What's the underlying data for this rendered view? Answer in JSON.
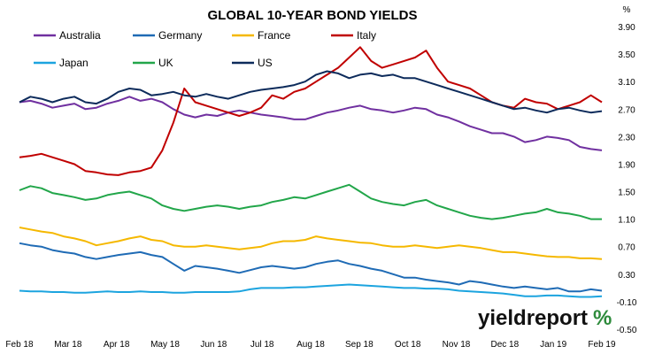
{
  "chart_data": {
    "type": "line",
    "title": "GLOBAL 10-YEAR BOND YIELDS",
    "y_unit_label": "%",
    "ylim": [
      -0.5,
      3.9
    ],
    "y_ticks": [
      "3.90",
      "3.50",
      "3.10",
      "2.70",
      "2.30",
      "1.90",
      "1.50",
      "1.10",
      "0.70",
      "0.30",
      "-0.10",
      "-0.50"
    ],
    "x_ticks": [
      "Feb 18",
      "Mar 18",
      "Apr 18",
      "May 18",
      "Jun 18",
      "Jul 18",
      "Aug 18",
      "Sep 18",
      "Oct 18",
      "Nov 18",
      "Dec 18",
      "Jan 19",
      "Feb 19"
    ],
    "grid": false,
    "legend_position": "top",
    "series": [
      {
        "name": "Australia",
        "color": "#7030A0",
        "values": [
          2.8,
          2.82,
          2.78,
          2.72,
          2.75,
          2.78,
          2.7,
          2.72,
          2.78,
          2.82,
          2.88,
          2.82,
          2.85,
          2.8,
          2.7,
          2.62,
          2.58,
          2.62,
          2.6,
          2.65,
          2.68,
          2.65,
          2.62,
          2.6,
          2.58,
          2.55,
          2.55,
          2.6,
          2.65,
          2.68,
          2.72,
          2.75,
          2.7,
          2.68,
          2.65,
          2.68,
          2.72,
          2.7,
          2.62,
          2.58,
          2.52,
          2.45,
          2.4,
          2.35,
          2.35,
          2.3,
          2.22,
          2.25,
          2.3,
          2.28,
          2.25,
          2.15,
          2.12,
          2.1
        ]
      },
      {
        "name": "Germany",
        "color": "#1F6BB5",
        "values": [
          0.75,
          0.72,
          0.7,
          0.65,
          0.62,
          0.6,
          0.55,
          0.52,
          0.55,
          0.58,
          0.6,
          0.62,
          0.58,
          0.55,
          0.45,
          0.35,
          0.42,
          0.4,
          0.38,
          0.35,
          0.32,
          0.36,
          0.4,
          0.42,
          0.4,
          0.38,
          0.4,
          0.45,
          0.48,
          0.5,
          0.45,
          0.42,
          0.38,
          0.35,
          0.3,
          0.25,
          0.25,
          0.22,
          0.2,
          0.18,
          0.15,
          0.2,
          0.18,
          0.15,
          0.12,
          0.1,
          0.12,
          0.1,
          0.08,
          0.1,
          0.05,
          0.05,
          0.08,
          0.06
        ]
      },
      {
        "name": "France",
        "color": "#F5B800",
        "values": [
          0.98,
          0.95,
          0.92,
          0.9,
          0.85,
          0.82,
          0.78,
          0.72,
          0.75,
          0.78,
          0.82,
          0.85,
          0.8,
          0.78,
          0.72,
          0.7,
          0.7,
          0.72,
          0.7,
          0.68,
          0.66,
          0.68,
          0.7,
          0.75,
          0.78,
          0.78,
          0.8,
          0.85,
          0.82,
          0.8,
          0.78,
          0.76,
          0.75,
          0.72,
          0.7,
          0.7,
          0.72,
          0.7,
          0.68,
          0.7,
          0.72,
          0.7,
          0.68,
          0.65,
          0.62,
          0.62,
          0.6,
          0.58,
          0.56,
          0.55,
          0.55,
          0.53,
          0.53,
          0.52
        ]
      },
      {
        "name": "Italy",
        "color": "#C00000",
        "values": [
          2.0,
          2.02,
          2.05,
          2.0,
          1.95,
          1.9,
          1.8,
          1.78,
          1.75,
          1.74,
          1.78,
          1.8,
          1.85,
          2.1,
          2.5,
          3.0,
          2.8,
          2.75,
          2.7,
          2.65,
          2.6,
          2.65,
          2.72,
          2.9,
          2.85,
          2.95,
          3.0,
          3.1,
          3.2,
          3.3,
          3.45,
          3.6,
          3.4,
          3.3,
          3.35,
          3.4,
          3.45,
          3.55,
          3.3,
          3.1,
          3.05,
          3.0,
          2.9,
          2.8,
          2.75,
          2.72,
          2.85,
          2.8,
          2.78,
          2.7,
          2.75,
          2.8,
          2.9,
          2.8
        ]
      },
      {
        "name": "Japan",
        "color": "#1CA4DF",
        "values": [
          0.06,
          0.05,
          0.05,
          0.04,
          0.04,
          0.03,
          0.03,
          0.04,
          0.05,
          0.04,
          0.04,
          0.05,
          0.04,
          0.04,
          0.03,
          0.03,
          0.04,
          0.04,
          0.04,
          0.04,
          0.05,
          0.08,
          0.1,
          0.1,
          0.1,
          0.11,
          0.11,
          0.12,
          0.13,
          0.14,
          0.15,
          0.14,
          0.13,
          0.12,
          0.11,
          0.1,
          0.1,
          0.09,
          0.09,
          0.08,
          0.06,
          0.05,
          0.04,
          0.03,
          0.02,
          0.0,
          -0.02,
          -0.02,
          -0.01,
          -0.01,
          -0.02,
          -0.03,
          -0.03,
          -0.02
        ]
      },
      {
        "name": "UK",
        "color": "#22A64A",
        "values": [
          1.52,
          1.58,
          1.55,
          1.48,
          1.45,
          1.42,
          1.38,
          1.4,
          1.45,
          1.48,
          1.5,
          1.45,
          1.4,
          1.3,
          1.25,
          1.22,
          1.25,
          1.28,
          1.3,
          1.28,
          1.25,
          1.28,
          1.3,
          1.35,
          1.38,
          1.42,
          1.4,
          1.45,
          1.5,
          1.55,
          1.6,
          1.5,
          1.4,
          1.35,
          1.32,
          1.3,
          1.35,
          1.38,
          1.3,
          1.25,
          1.2,
          1.15,
          1.12,
          1.1,
          1.12,
          1.15,
          1.18,
          1.2,
          1.25,
          1.2,
          1.18,
          1.15,
          1.1,
          1.1
        ]
      },
      {
        "name": "US",
        "color": "#0D2B5B",
        "values": [
          2.8,
          2.88,
          2.85,
          2.8,
          2.85,
          2.88,
          2.8,
          2.78,
          2.85,
          2.95,
          3.0,
          2.98,
          2.9,
          2.92,
          2.95,
          2.9,
          2.88,
          2.92,
          2.88,
          2.85,
          2.9,
          2.95,
          2.98,
          3.0,
          3.02,
          3.05,
          3.1,
          3.2,
          3.25,
          3.22,
          3.15,
          3.2,
          3.22,
          3.18,
          3.2,
          3.15,
          3.15,
          3.1,
          3.05,
          3.0,
          2.95,
          2.9,
          2.85,
          2.8,
          2.75,
          2.7,
          2.72,
          2.68,
          2.65,
          2.7,
          2.72,
          2.68,
          2.65,
          2.67
        ]
      }
    ]
  },
  "logo": {
    "brand": "yieldreport",
    "symbol": "%"
  }
}
